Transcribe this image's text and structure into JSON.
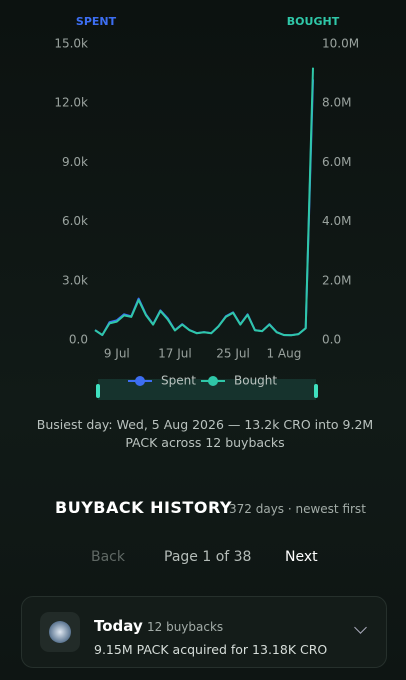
{
  "chart_data": {
    "type": "line",
    "y_axis_label": "SPENT",
    "y2_axis_label": "BOUGHT",
    "categories": [
      null,
      null,
      null,
      "9 Jul",
      null,
      null,
      null,
      null,
      null,
      null,
      null,
      "17 Jul",
      null,
      null,
      null,
      null,
      null,
      null,
      null,
      "25 Jul",
      null,
      null,
      null,
      null,
      null,
      null,
      "1 Aug",
      null,
      null,
      null,
      null
    ],
    "series": [
      {
        "name": "Spent",
        "color": "#3d6ef2",
        "values": [
          500,
          250,
          900,
          1000,
          1300,
          1200,
          2100,
          1300,
          800,
          1500,
          1100,
          500,
          800,
          500,
          350,
          400,
          350,
          700,
          1200,
          1400,
          800,
          1300,
          500,
          450,
          800,
          400,
          250,
          250,
          300,
          600,
          13200
        ]
      },
      {
        "name": "Bought",
        "color": "#2fc7a8",
        "axis": "y2",
        "values": [
          330000,
          170000,
          560000,
          620000,
          830000,
          780000,
          1350000,
          840000,
          520000,
          980000,
          700000,
          320000,
          520000,
          330000,
          230000,
          260000,
          230000,
          460000,
          780000,
          920000,
          520000,
          850000,
          330000,
          300000,
          520000,
          260000,
          170000,
          160000,
          200000,
          400000,
          9200000
        ]
      }
    ],
    "ylim": [
      0,
      15000
    ],
    "yticks": [
      {
        "value": 0,
        "label": "0.0"
      },
      {
        "value": 3000,
        "label": "3.0k"
      },
      {
        "value": 6000,
        "label": "6.0k"
      },
      {
        "value": 9000,
        "label": "9.0k"
      },
      {
        "value": 12000,
        "label": "12.0k"
      },
      {
        "value": 15000,
        "label": "15.0k"
      }
    ],
    "y2lim": [
      0,
      10000000
    ],
    "y2ticks": [
      {
        "value": 0,
        "label": "0.0"
      },
      {
        "value": 2000000,
        "label": "2.0M"
      },
      {
        "value": 4000000,
        "label": "4.0M"
      },
      {
        "value": 6000000,
        "label": "6.0M"
      },
      {
        "value": 8000000,
        "label": "8.0M"
      },
      {
        "value": 10000000,
        "label": "10.0M"
      }
    ]
  },
  "busiest": "Busiest day: Wed, 5 Aug 2026 — 13.2k CRO into 9.2M PACK across 12 buybacks",
  "history": {
    "title": "BUYBACK HISTORY",
    "subtitle": "372 days · newest first"
  },
  "pagination": {
    "back": "Back",
    "page": "Page 1 of 38",
    "next": "Next"
  },
  "card": {
    "title": "Today",
    "count": "12 buybacks",
    "summary": "9.15M PACK acquired for 13.18K CRO"
  }
}
